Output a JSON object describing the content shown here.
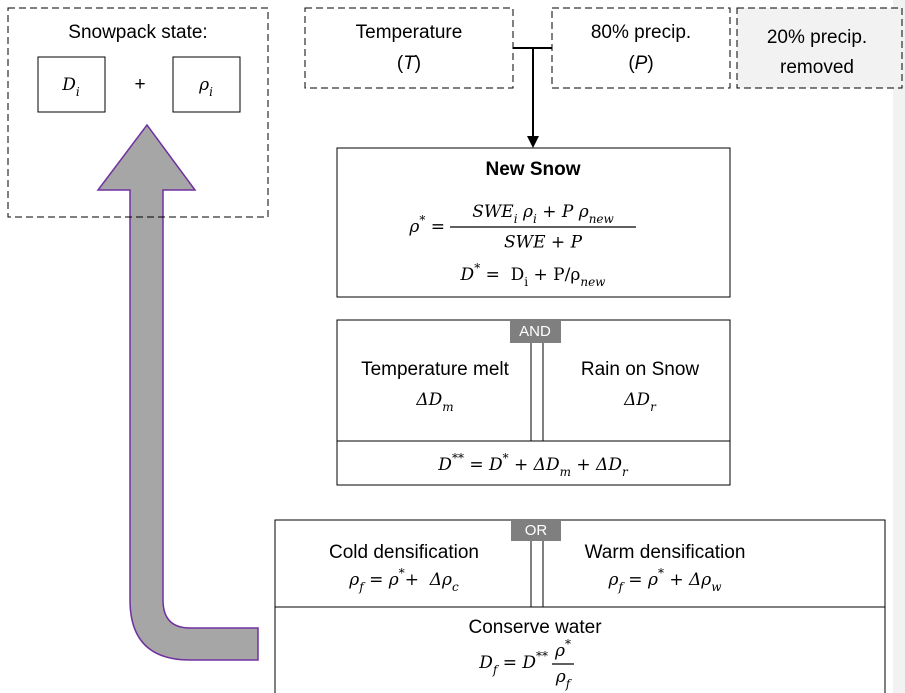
{
  "snowpack": {
    "title": "Snowpack state:",
    "depth": [
      "D",
      "i"
    ],
    "plus": "+",
    "density": [
      "ρ",
      "i"
    ]
  },
  "inputs": {
    "temperature": {
      "label": "Temperature",
      "symbol": [
        "(",
        "T",
        ")"
      ]
    },
    "precip": {
      "label": "80% precip.",
      "symbol": [
        "(",
        "P",
        ")"
      ]
    },
    "removed": [
      "20% precip.",
      "removed"
    ]
  },
  "new_snow": {
    "title": "New Snow",
    "density": {
      "lhs": [
        "ρ",
        "*",
        " ="
      ],
      "numerator": [
        "SWE",
        "i",
        " ρ",
        "i",
        " + P ρ",
        "new"
      ],
      "denominator": "SWE + P"
    },
    "depth": [
      "D",
      "*",
      " =  D",
      "i",
      " + P/ρ",
      "new"
    ]
  },
  "melt": {
    "tag": "AND",
    "left": {
      "label": "Temperature melt",
      "symbol": [
        "ΔD",
        "m"
      ]
    },
    "right": {
      "label": "Rain on Snow",
      "symbol": [
        "ΔD",
        "r"
      ]
    },
    "depth": [
      "D",
      "**",
      " = D",
      "*",
      " + ΔD",
      "m",
      " + ΔD",
      "r"
    ]
  },
  "densification": {
    "tag": "OR",
    "left": {
      "label": "Cold densification",
      "formula": [
        "ρ",
        "f",
        " = ρ",
        "*",
        "+  Δρ",
        "c"
      ]
    },
    "right": {
      "label": "Warm densification",
      "formula": [
        "ρ",
        "f",
        " = ρ",
        "*",
        " + Δρ",
        "w"
      ]
    },
    "conserve": {
      "label": "Conserve water",
      "lhs": [
        "D",
        "f",
        " = D",
        "**"
      ],
      "numerator": [
        "ρ",
        "*"
      ],
      "denominator": [
        "ρ",
        "f"
      ]
    }
  }
}
